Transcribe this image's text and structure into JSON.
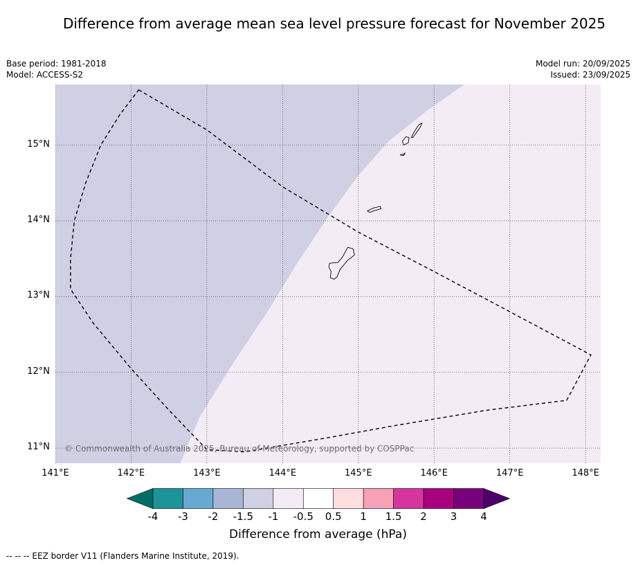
{
  "title": "Difference from average mean sea level pressure forecast for November 2025",
  "meta": {
    "base_period": "Base period: 1981-2018",
    "model": "Model: ACCESS-S2",
    "model_run": "Model run: 20/09/2025",
    "issued": "Issued: 23/09/2025"
  },
  "map": {
    "lon_range": [
      141.0,
      148.2
    ],
    "lat_range": [
      10.8,
      15.8
    ],
    "lon_ticks": [
      {
        "value": 141,
        "label": "141°E"
      },
      {
        "value": 142,
        "label": "142°E"
      },
      {
        "value": 143,
        "label": "143°E"
      },
      {
        "value": 144,
        "label": "144°E"
      },
      {
        "value": 145,
        "label": "145°E"
      },
      {
        "value": 146,
        "label": "146°E"
      },
      {
        "value": 147,
        "label": "147°E"
      },
      {
        "value": 148,
        "label": "148°E"
      }
    ],
    "lat_ticks": [
      {
        "value": 15,
        "label": "15°N"
      },
      {
        "value": 14,
        "label": "14°N"
      },
      {
        "value": 13,
        "label": "13°N"
      },
      {
        "value": 12,
        "label": "12°N"
      },
      {
        "value": 11,
        "label": "11°N"
      }
    ],
    "regions": [
      {
        "category": "-1.5 to -1",
        "color": "#cfd0e4",
        "polygon": [
          [
            141.0,
            15.8
          ],
          [
            146.4,
            15.8
          ],
          [
            145.9,
            15.45
          ],
          [
            145.4,
            15.05
          ],
          [
            145.0,
            14.6
          ],
          [
            144.6,
            14.05
          ],
          [
            144.2,
            13.45
          ],
          [
            143.8,
            12.8
          ],
          [
            143.3,
            12.05
          ],
          [
            142.9,
            11.4
          ],
          [
            142.65,
            10.8
          ],
          [
            141.0,
            10.8
          ]
        ]
      },
      {
        "category": "-1 to -0.5",
        "color": "#f4ecf5",
        "polygon": "remainder"
      }
    ],
    "eez_border": [
      [
        142.1,
        15.73
      ],
      [
        143.0,
        15.2
      ],
      [
        144.0,
        14.45
      ],
      [
        145.0,
        13.85
      ],
      [
        146.0,
        13.33
      ],
      [
        147.0,
        12.8
      ],
      [
        148.07,
        12.23
      ],
      [
        147.75,
        11.63
      ],
      [
        146.7,
        11.5
      ],
      [
        145.5,
        11.3
      ],
      [
        144.5,
        11.12
      ],
      [
        143.5,
        10.95
      ],
      [
        143.0,
        10.98
      ],
      [
        142.5,
        11.5
      ],
      [
        142.0,
        12.05
      ],
      [
        141.5,
        12.65
      ],
      [
        141.2,
        13.1
      ],
      [
        141.2,
        13.5
      ],
      [
        141.25,
        14.0
      ],
      [
        141.4,
        14.5
      ],
      [
        141.6,
        15.0
      ],
      [
        141.85,
        15.4
      ],
      [
        142.1,
        15.73
      ]
    ],
    "islands": [
      {
        "name": "guam",
        "outline": [
          [
            144.62,
            13.44
          ],
          [
            144.73,
            13.45
          ],
          [
            144.79,
            13.52
          ],
          [
            144.86,
            13.65
          ],
          [
            144.93,
            13.63
          ],
          [
            144.95,
            13.55
          ],
          [
            144.86,
            13.48
          ],
          [
            144.76,
            13.36
          ],
          [
            144.72,
            13.26
          ],
          [
            144.68,
            13.23
          ],
          [
            144.63,
            13.25
          ],
          [
            144.64,
            13.33
          ],
          [
            144.61,
            13.39
          ],
          [
            144.62,
            13.44
          ]
        ]
      },
      {
        "name": "rota",
        "outline": [
          [
            145.12,
            14.13
          ],
          [
            145.2,
            14.17
          ],
          [
            145.29,
            14.19
          ],
          [
            145.3,
            14.16
          ],
          [
            145.2,
            14.13
          ],
          [
            145.15,
            14.11
          ],
          [
            145.12,
            14.13
          ]
        ]
      },
      {
        "name": "tinian",
        "outline": [
          [
            145.55,
            14.87
          ],
          [
            145.6,
            14.88
          ],
          [
            145.62,
            14.9
          ],
          [
            145.6,
            14.86
          ],
          [
            145.55,
            14.87
          ]
        ]
      },
      {
        "name": "tinian-north",
        "outline": [
          [
            145.6,
            15.0
          ],
          [
            145.66,
            15.03
          ],
          [
            145.67,
            15.1
          ],
          [
            145.63,
            15.11
          ],
          [
            145.58,
            15.05
          ],
          [
            145.6,
            15.0
          ]
        ]
      },
      {
        "name": "saipan",
        "outline": [
          [
            145.7,
            15.1
          ],
          [
            145.74,
            15.18
          ],
          [
            145.8,
            15.27
          ],
          [
            145.84,
            15.29
          ],
          [
            145.82,
            15.24
          ],
          [
            145.77,
            15.17
          ],
          [
            145.72,
            15.1
          ],
          [
            145.7,
            15.1
          ]
        ]
      }
    ]
  },
  "copyright": "© Commonwealth of Australia 2025, Bureau of Meteorology, supported by COSPPac",
  "colorbar": {
    "colors": [
      "#006e66",
      "#1d9497",
      "#67a9d0",
      "#a8b5d5",
      "#cfd0e4",
      "#f4ecf5",
      "#ffffff",
      "#fddddd",
      "#f8a0b8",
      "#d6359d",
      "#a8007f",
      "#79007b",
      "#4c006a"
    ],
    "ticks": [
      "-4",
      "-3",
      "-2",
      "-1.5",
      "-1",
      "-0.5",
      "0.5",
      "1",
      "1.5",
      "2",
      "3",
      "4"
    ],
    "label": "Difference from average (hPa)"
  },
  "footnote": "--  --  -- EEZ border V11 (Flanders Marine Institute, 2019)."
}
